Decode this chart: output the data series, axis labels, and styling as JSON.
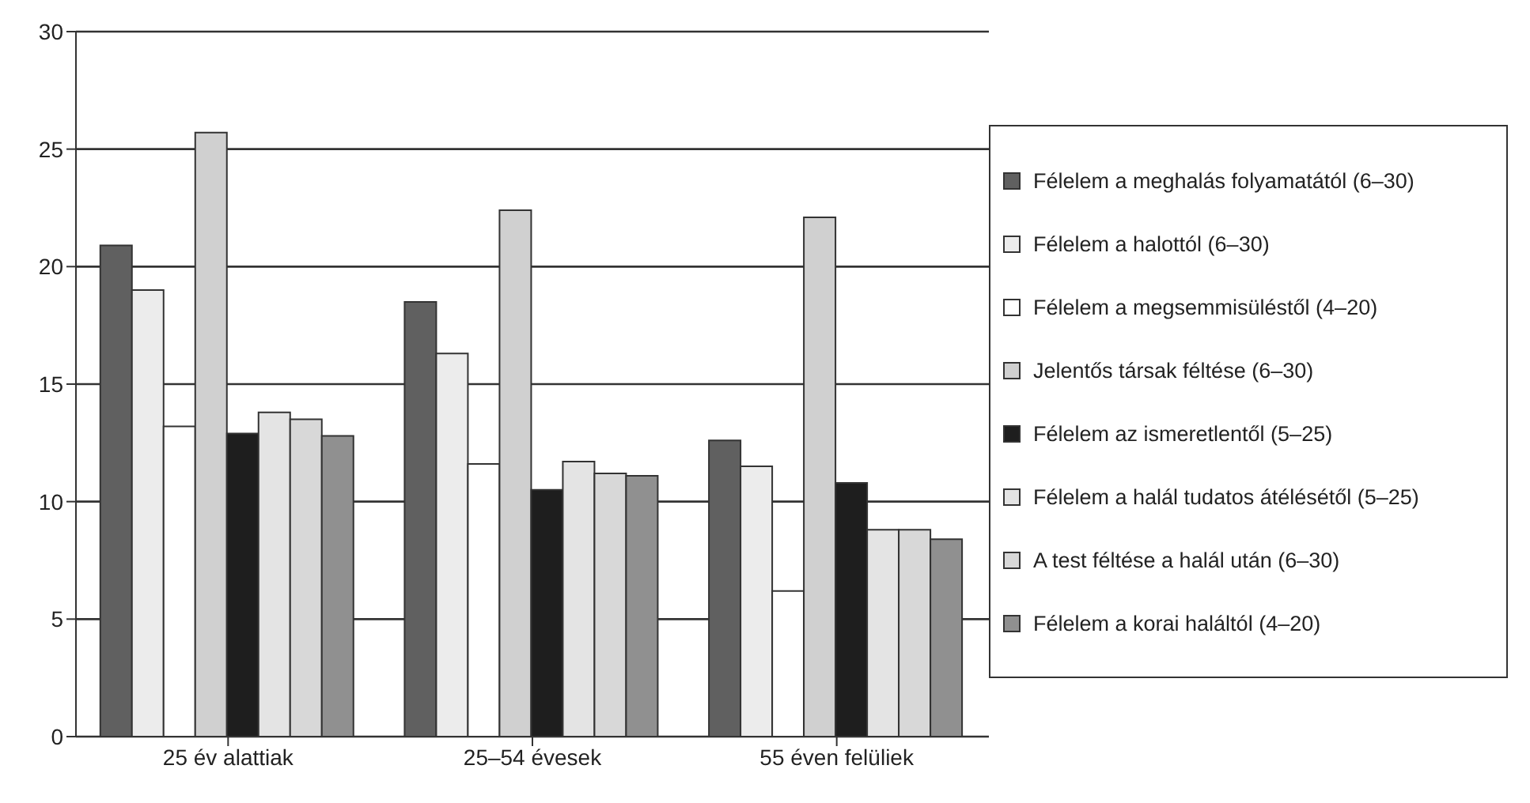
{
  "chart_data": {
    "type": "bar",
    "categories": [
      "25 év alattiak",
      "25–54 évesek",
      "55 éven felüliek"
    ],
    "series": [
      {
        "name": "Félelem a meghalás folyamatától (6–30)",
        "color": "#606060",
        "values": [
          20.9,
          18.5,
          12.6
        ]
      },
      {
        "name": "Félelem a halottól (6–30)",
        "color": "#ececec",
        "values": [
          19.0,
          16.3,
          11.5
        ]
      },
      {
        "name": "Félelem a megsemmisüléstől (4–20)",
        "color": "#ffffff",
        "values": [
          13.2,
          11.6,
          6.2
        ]
      },
      {
        "name": "Jelentős társak féltése (6–30)",
        "color": "#d0d0d0",
        "values": [
          25.7,
          22.4,
          22.1
        ]
      },
      {
        "name": "Félelem az ismeretlentől (5–25)",
        "color": "#1e1e1e",
        "values": [
          12.9,
          10.5,
          10.8
        ]
      },
      {
        "name": "Félelem a halál tudatos átélésétől (5–25)",
        "color": "#e4e4e4",
        "values": [
          13.8,
          11.7,
          8.8
        ]
      },
      {
        "name": "A test féltése a halál után (6–30)",
        "color": "#d8d8d8",
        "values": [
          13.5,
          11.2,
          8.8
        ]
      },
      {
        "name": "Félelem a korai haláltól (4–20)",
        "color": "#909090",
        "values": [
          12.8,
          11.1,
          8.4
        ]
      }
    ],
    "ylim": [
      0,
      30
    ],
    "yticks": [
      0,
      5,
      10,
      15,
      20,
      25,
      30
    ],
    "grid": "y",
    "legend": "right"
  }
}
